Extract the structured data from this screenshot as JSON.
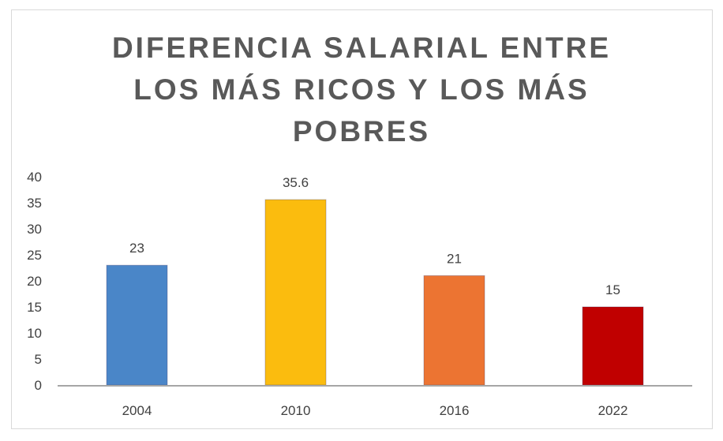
{
  "chart_data": {
    "type": "bar",
    "title_lines": [
      "DIFERENCIA SALARIAL ENTRE",
      "LOS MÁS RICOS Y LOS MÁS",
      "POBRES"
    ],
    "categories": [
      "2004",
      "2010",
      "2016",
      "2022"
    ],
    "values": [
      23,
      35.6,
      21,
      15
    ],
    "data_labels": [
      "23",
      "35.6",
      "21",
      "15"
    ],
    "colors": [
      "#4a86c8",
      "#fbbc0e",
      "#ec7432",
      "#c00000"
    ],
    "xlabel": "",
    "ylabel": "",
    "ylim": [
      0,
      40
    ],
    "yticks": [
      0,
      5,
      10,
      15,
      20,
      25,
      30,
      35,
      40
    ],
    "grid": false,
    "legend": "none"
  }
}
